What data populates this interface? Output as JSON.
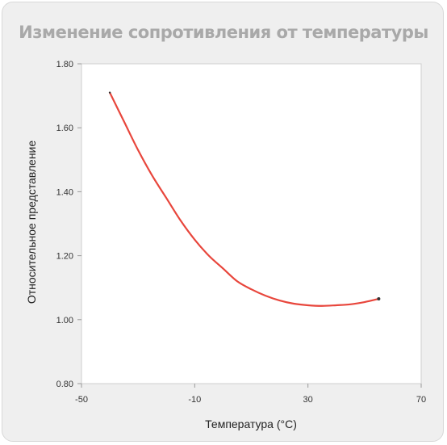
{
  "title": "Изменение сопротивления от температуры",
  "chart_data": {
    "type": "line",
    "title": "Изменение сопротивления от температуры",
    "xlabel": "Температура (°C)",
    "ylabel": "Относительное представление",
    "xlim": [
      -50,
      70
    ],
    "ylim": [
      0.8,
      1.8
    ],
    "xticks": [
      "-50",
      "-10",
      "30",
      "70"
    ],
    "yticks": [
      "0.80",
      "1.00",
      "1.20",
      "1.40",
      "1.60",
      "1.80"
    ],
    "grid": false,
    "series": [
      {
        "color": "#e8463c",
        "x": [
          -40,
          -35,
          -30,
          -25,
          -20,
          -15,
          -10,
          -5,
          0,
          5,
          10,
          15,
          20,
          25,
          30,
          35,
          40,
          45,
          50,
          55
        ],
        "y": [
          1.71,
          1.62,
          1.53,
          1.45,
          1.38,
          1.31,
          1.25,
          1.2,
          1.16,
          1.12,
          1.095,
          1.075,
          1.06,
          1.05,
          1.045,
          1.043,
          1.045,
          1.048,
          1.055,
          1.065
        ]
      }
    ]
  }
}
